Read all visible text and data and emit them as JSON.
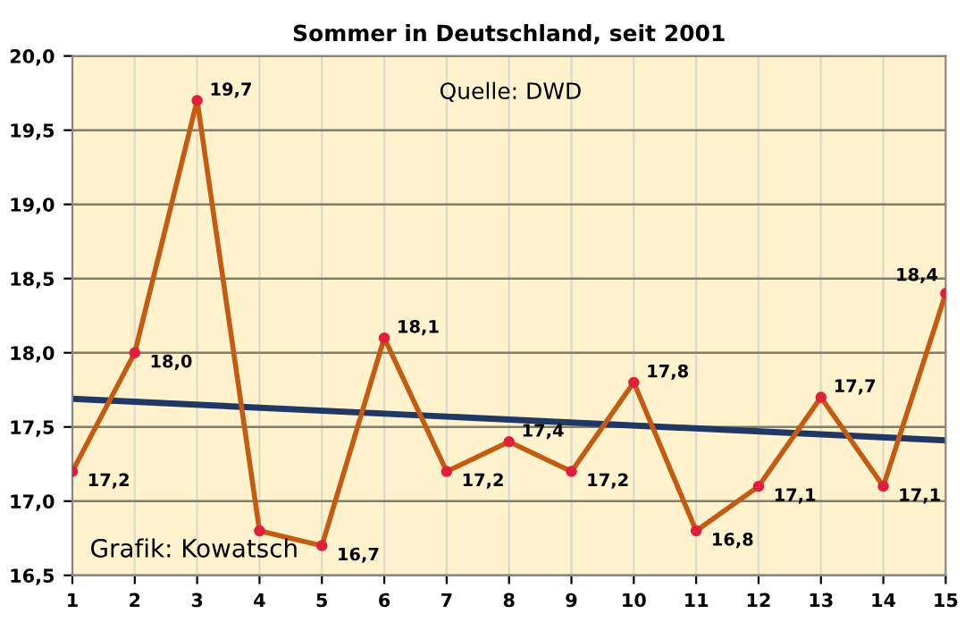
{
  "chart_data": {
    "type": "line",
    "title": "Sommer in Deutschland, seit 2001",
    "x": [
      1,
      2,
      3,
      4,
      5,
      6,
      7,
      8,
      9,
      10,
      11,
      12,
      13,
      14,
      15
    ],
    "series": [
      {
        "color": "#c55a11",
        "values": [
          17.2,
          18.0,
          19.7,
          16.8,
          16.7,
          18.1,
          17.2,
          17.4,
          17.2,
          17.8,
          16.8,
          17.1,
          17.7,
          17.1,
          18.4
        ],
        "value_labels": [
          "17,2",
          "18,0",
          "19,7",
          null,
          "16,7",
          "18,1",
          "17,2",
          "17,4",
          "17,2",
          "17,8",
          "16,8",
          "17,1",
          "17,7",
          "17,1",
          "18,4"
        ],
        "marker": "circle"
      },
      {
        "type": "line",
        "color": "#1f3864",
        "x": [
          1,
          15
        ],
        "values": [
          17.69,
          17.41
        ],
        "marker": "none"
      }
    ],
    "xlim": [
      1,
      15
    ],
    "xticks": [
      1,
      2,
      3,
      4,
      5,
      6,
      7,
      8,
      9,
      10,
      11,
      12,
      13,
      14,
      15
    ],
    "ylim": [
      16.5,
      20.0
    ],
    "yticks": [
      {
        "value": 16.5,
        "label": "16,5"
      },
      {
        "value": 17.0,
        "label": "17,0"
      },
      {
        "value": 17.5,
        "label": "17,5"
      },
      {
        "value": 18.0,
        "label": "18,0"
      },
      {
        "value": 18.5,
        "label": "18,5"
      },
      {
        "value": 19.0,
        "label": "19,0"
      },
      {
        "value": 19.5,
        "label": "19,5"
      },
      {
        "value": 20.0,
        "label": "20,0"
      }
    ],
    "grid": true,
    "legend": false,
    "annotations": [
      "Quelle: DWD",
      "Grafik: Kowatsch"
    ]
  }
}
